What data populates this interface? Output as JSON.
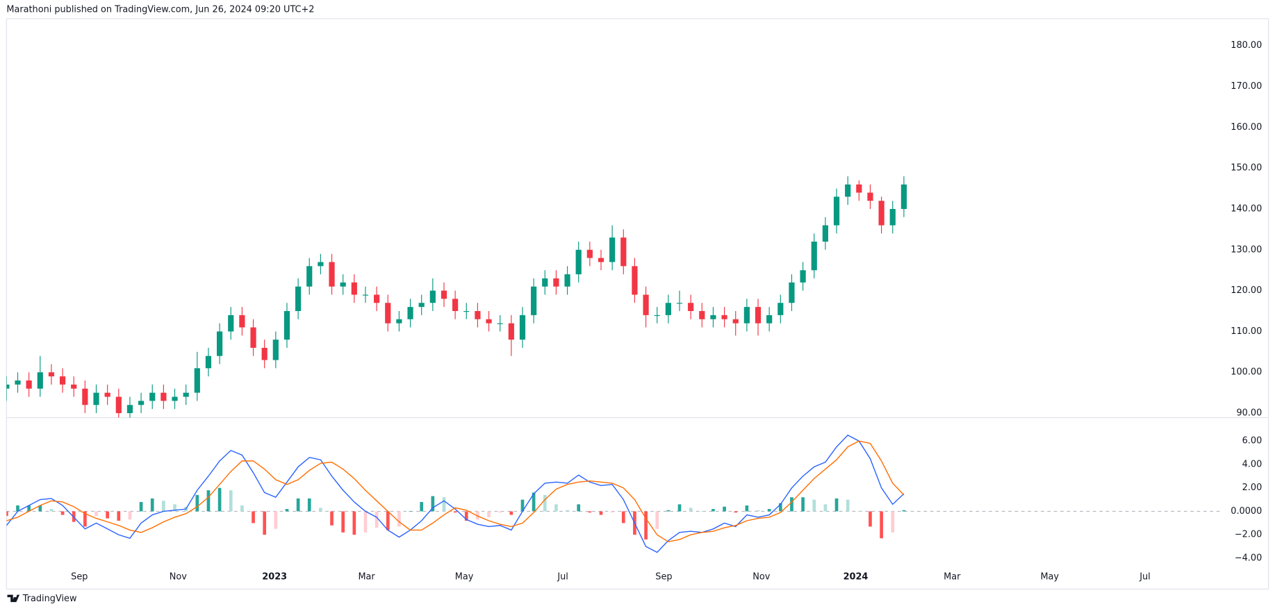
{
  "header": {
    "text": "Marathoni published on TradingView.com, Jun 26, 2024 09:20 UTC+2"
  },
  "footer": {
    "brand": "TradingView"
  },
  "chart_data": [
    {
      "type": "candlestick",
      "up_color": "#089981",
      "down_color": "#f23645",
      "xlim": [
        0,
        108.3
      ],
      "ylim": [
        88.9,
        186.6
      ],
      "yticks": [
        {
          "value": 180,
          "label": "180.00"
        },
        {
          "value": 170,
          "label": "170.00"
        },
        {
          "value": 160,
          "label": "160.00"
        },
        {
          "value": 150,
          "label": "150.00"
        },
        {
          "value": 140,
          "label": "140.00"
        },
        {
          "value": 130,
          "label": "130.00"
        },
        {
          "value": 120,
          "label": "120.00"
        },
        {
          "value": 110,
          "label": "110.00"
        },
        {
          "value": 100,
          "label": "100.00"
        },
        {
          "value": 90,
          "label": "90.00"
        }
      ],
      "open": [
        96,
        97,
        98,
        96,
        100,
        99,
        97,
        96,
        92,
        95,
        94,
        90,
        92,
        93,
        95,
        93,
        94,
        95,
        101,
        104,
        110,
        114,
        111,
        106,
        103,
        108,
        115,
        121,
        126,
        127,
        121,
        122,
        119,
        119,
        117,
        112,
        113,
        116,
        117,
        120,
        118,
        115,
        115,
        113,
        112,
        112,
        108,
        114,
        121,
        123,
        121,
        124,
        130,
        128,
        127,
        133,
        126,
        119,
        114,
        114,
        117,
        117,
        115,
        113,
        114,
        113,
        112,
        116,
        112,
        114,
        117,
        122,
        125,
        132,
        136,
        143,
        146,
        144,
        142,
        136,
        140
      ],
      "high": [
        99,
        100,
        100,
        104,
        102,
        101,
        99,
        98,
        97,
        97,
        96,
        94,
        95,
        97,
        97,
        96,
        97,
        105,
        106,
        112,
        116,
        116,
        113,
        108,
        110,
        117,
        123,
        128,
        129,
        129,
        124,
        124,
        121,
        121,
        119,
        115,
        118,
        119,
        123,
        122,
        120,
        117,
        117,
        115,
        114,
        114,
        116,
        123,
        125,
        125,
        126,
        132,
        132,
        130,
        136,
        135,
        128,
        121,
        116,
        119,
        120,
        119,
        117,
        116,
        116,
        115,
        118,
        118,
        116,
        119,
        124,
        127,
        134,
        138,
        145,
        148,
        147,
        146,
        143,
        142,
        148
      ],
      "low": [
        93,
        95,
        94,
        94,
        97,
        95,
        94,
        90,
        90,
        92,
        88,
        88,
        90,
        91,
        91,
        91,
        92,
        93,
        99,
        102,
        108,
        109,
        104,
        101,
        101,
        106,
        113,
        119,
        124,
        119,
        119,
        117,
        117,
        115,
        110,
        110,
        111,
        114,
        115,
        116,
        113,
        113,
        111,
        110,
        110,
        104,
        106,
        112,
        119,
        119,
        119,
        122,
        126,
        125,
        125,
        124,
        117,
        111,
        112,
        112,
        115,
        113,
        111,
        111,
        111,
        109,
        110,
        109,
        110,
        112,
        115,
        120,
        123,
        130,
        134,
        141,
        142,
        140,
        134,
        134,
        138
      ],
      "close": [
        97,
        98,
        96,
        100,
        99,
        97,
        96,
        92,
        95,
        94,
        90,
        92,
        93,
        95,
        93,
        94,
        95,
        101,
        104,
        110,
        114,
        111,
        106,
        103,
        108,
        115,
        121,
        126,
        127,
        121,
        122,
        119,
        119,
        117,
        112,
        113,
        116,
        117,
        120,
        118,
        115,
        115,
        113,
        112,
        112,
        108,
        114,
        121,
        123,
        121,
        124,
        130,
        128,
        127,
        133,
        126,
        119,
        114,
        114,
        117,
        117,
        115,
        113,
        114,
        113,
        112,
        116,
        112,
        114,
        117,
        122,
        125,
        132,
        136,
        143,
        146,
        144,
        142,
        136,
        140,
        146
      ]
    },
    {
      "type": "macd",
      "xlim": [
        0,
        108.3
      ],
      "ylim": [
        -4.9,
        8.0
      ],
      "yticks": [
        {
          "value": 6,
          "label": "6.00"
        },
        {
          "value": 4,
          "label": "4.00"
        },
        {
          "value": 2,
          "label": "2.00"
        },
        {
          "value": 0,
          "label": "0.0000"
        },
        {
          "value": -2,
          "label": "−2.00"
        },
        {
          "value": -4,
          "label": "−4.00"
        }
      ],
      "xticks": [
        {
          "value": 6.5,
          "label": "Sep"
        },
        {
          "value": 15.3,
          "label": "Nov"
        },
        {
          "value": 23.9,
          "label": "2023"
        },
        {
          "value": 32.1,
          "label": "Mar"
        },
        {
          "value": 40.8,
          "label": "May"
        },
        {
          "value": 49.6,
          "label": "Jul"
        },
        {
          "value": 58.6,
          "label": "Sep"
        },
        {
          "value": 67.3,
          "label": "Nov"
        },
        {
          "value": 75.7,
          "label": "2024"
        },
        {
          "value": 84.3,
          "label": "Mar"
        },
        {
          "value": 93.0,
          "label": "May"
        },
        {
          "value": 101.5,
          "label": "Jul"
        }
      ],
      "histogram_colors": {
        "up": "#26a69a",
        "up_light": "#b2dfdb",
        "down": "#ff5252",
        "down_light": "#ffcdd2"
      },
      "series": [
        {
          "type": "bar",
          "values": [
            -0.4,
            0.5,
            0.5,
            0.5,
            0.2,
            -0.3,
            -0.9,
            -1.3,
            -0.4,
            -0.6,
            -0.8,
            -0.7,
            0.8,
            1.1,
            0.9,
            0.6,
            0.4,
            1.4,
            1.8,
            2.0,
            1.8,
            0.5,
            -1.0,
            -2.0,
            -1.5,
            0.2,
            1.1,
            1.1,
            0.3,
            -1.2,
            -1.8,
            -2.0,
            -1.8,
            -1.4,
            -1.6,
            -1.3,
            0,
            0.8,
            1.3,
            1.2,
            -0.1,
            -0.8,
            -0.7,
            -0.5,
            -0.1,
            -0.3,
            1.0,
            1.6,
            1.4,
            0.6,
            0.1,
            0.6,
            -0.1,
            -0.3,
            -0.1,
            -1.0,
            -2.0,
            -2.4,
            -1.5,
            0.1,
            0.6,
            0.3,
            0,
            0.2,
            0.4,
            -0.1,
            0.5,
            0.1,
            0.2,
            0.7,
            1.2,
            1.2,
            1.0,
            0.6,
            1.1,
            1.0,
            0,
            -1.3,
            -2.3,
            -1.8,
            0.1
          ]
        },
        {
          "type": "line",
          "color": "#2962ff",
          "values": [
            -1.2,
            0,
            0.5,
            1.0,
            1.1,
            0.5,
            -0.5,
            -1.5,
            -1.0,
            -1.5,
            -2.0,
            -2.3,
            -1.0,
            -0.3,
            0,
            0.1,
            0.2,
            1.8,
            3.0,
            4.3,
            5.2,
            4.8,
            3.3,
            1.6,
            1.2,
            2.5,
            3.8,
            4.6,
            4.4,
            3.0,
            1.8,
            0.8,
            0,
            -0.5,
            -1.6,
            -2.2,
            -1.6,
            -0.8,
            0.3,
            0.9,
            0.2,
            -0.7,
            -1.1,
            -1.3,
            -1.2,
            -1.6,
            0,
            1.5,
            2.4,
            2.5,
            2.4,
            3.1,
            2.5,
            2.2,
            2.3,
            1.0,
            -1.0,
            -3.0,
            -3.5,
            -2.5,
            -1.8,
            -1.7,
            -1.8,
            -1.5,
            -1.0,
            -1.3,
            -0.3,
            -0.5,
            -0.3,
            0.6,
            2.0,
            3.0,
            3.8,
            4.2,
            5.5,
            6.5,
            6.0,
            4.5,
            2.0,
            0.6,
            1.5
          ]
        },
        {
          "type": "line",
          "color": "#ff6d00",
          "values": [
            -0.8,
            -0.5,
            0,
            0.5,
            0.9,
            0.8,
            0.4,
            -0.2,
            -0.6,
            -0.9,
            -1.2,
            -1.6,
            -1.8,
            -1.4,
            -0.9,
            -0.5,
            -0.2,
            0.4,
            1.2,
            2.3,
            3.4,
            4.3,
            4.3,
            3.6,
            2.7,
            2.3,
            2.7,
            3.5,
            4.1,
            4.2,
            3.6,
            2.8,
            1.8,
            0.9,
            0,
            -0.9,
            -1.6,
            -1.6,
            -1.0,
            -0.3,
            0.3,
            0.1,
            -0.4,
            -0.8,
            -1.1,
            -1.3,
            -1.0,
            -0.1,
            1.0,
            1.9,
            2.3,
            2.5,
            2.6,
            2.5,
            2.4,
            2.0,
            1.0,
            -0.6,
            -2.0,
            -2.6,
            -2.4,
            -2.0,
            -1.8,
            -1.7,
            -1.4,
            -1.2,
            -0.8,
            -0.6,
            -0.5,
            -0.1,
            0.8,
            1.8,
            2.8,
            3.6,
            4.4,
            5.5,
            6.0,
            5.8,
            4.3,
            2.4,
            1.4
          ]
        }
      ]
    }
  ]
}
